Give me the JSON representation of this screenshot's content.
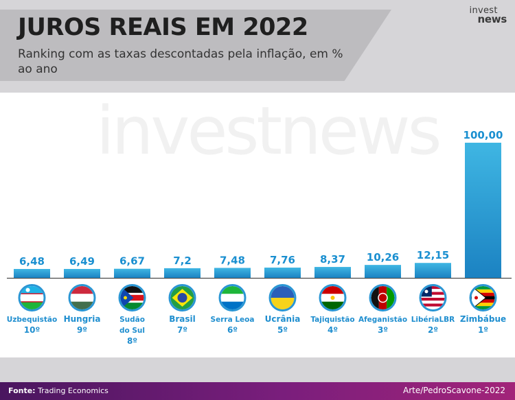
{
  "header": {
    "title": "JUROS REAIS EM 2022",
    "subtitle": "Ranking com as taxas descontadas pela inflação, em % ao ano"
  },
  "logo": {
    "line1": "invest",
    "line2": "news"
  },
  "watermark": "investnews",
  "footer": {
    "source_label": "Fonte:",
    "source_value": "Trading Economics",
    "credit": "Arte/PedroScavone-2022"
  },
  "colors": {
    "bar_top": "#3fb6e3",
    "bar_bottom": "#1b82c2",
    "value_text": "#1a8fd0",
    "label_text": "#1f8ecf",
    "baseline": "#4a4a4a"
  },
  "chart_data": {
    "type": "bar",
    "categories": [
      "Uzbequistão",
      "Hungria",
      "Sudão do Sul",
      "Brasil",
      "Serra Leoa",
      "Ucrânia",
      "Tajiquistão",
      "Afeganistão",
      "LibériaLBR",
      "Zimbábue"
    ],
    "value_labels": [
      "6,48",
      "6,49",
      "6,67",
      "7,2",
      "7,48",
      "7,76",
      "8,37",
      "10,26",
      "12,15",
      "100,00"
    ],
    "values": [
      6.48,
      6.49,
      6.67,
      7.2,
      7.48,
      7.76,
      8.37,
      10.26,
      12.15,
      100.0
    ],
    "ranks": [
      "10º",
      "9º",
      "8º",
      "7º",
      "6º",
      "5º",
      "4º",
      "3º",
      "2º",
      "1º"
    ],
    "flag_icons": [
      "uzbekistan-flag-icon",
      "hungary-flag-icon",
      "south-sudan-flag-icon",
      "brazil-flag-icon",
      "sierra-leone-flag-icon",
      "ukraine-flag-icon",
      "tajikistan-flag-icon",
      "afghanistan-flag-icon",
      "liberia-flag-icon",
      "zimbabwe-flag-icon"
    ],
    "ylim": [
      0,
      100
    ]
  }
}
